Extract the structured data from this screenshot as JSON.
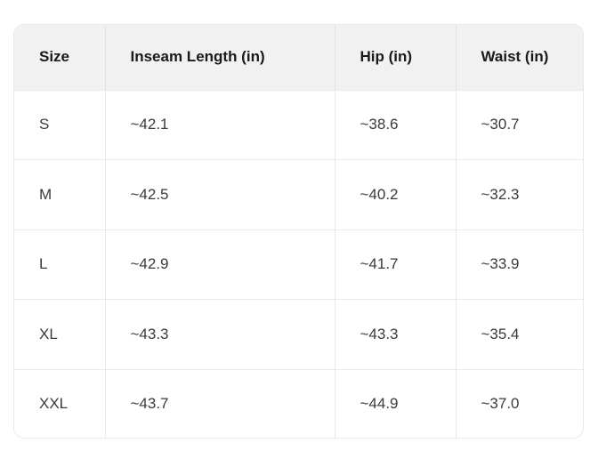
{
  "size_chart": {
    "columns": [
      {
        "label": "Size"
      },
      {
        "label": "Inseam Length (in)"
      },
      {
        "label": "Hip (in)"
      },
      {
        "label": "Waist (in)"
      }
    ],
    "rows": [
      {
        "size": "S",
        "inseam": "~42.1",
        "hip": "~38.6",
        "waist": "~30.7"
      },
      {
        "size": "M",
        "inseam": "~42.5",
        "hip": "~40.2",
        "waist": "~32.3"
      },
      {
        "size": "L",
        "inseam": "~42.9",
        "hip": "~41.7",
        "waist": "~33.9"
      },
      {
        "size": "XL",
        "inseam": "~43.3",
        "hip": "~43.3",
        "waist": "~35.4"
      },
      {
        "size": "XXL",
        "inseam": "~43.7",
        "hip": "~44.9",
        "waist": "~37.0"
      }
    ]
  },
  "chart_data": {
    "type": "table",
    "title": "",
    "columns": [
      "Size",
      "Inseam Length (in)",
      "Hip (in)",
      "Waist (in)"
    ],
    "rows": [
      [
        "S",
        "~42.1",
        "~38.6",
        "~30.7"
      ],
      [
        "M",
        "~42.5",
        "~40.2",
        "~32.3"
      ],
      [
        "L",
        "~42.9",
        "~41.7",
        "~33.9"
      ],
      [
        "XL",
        "~43.3",
        "~43.3",
        "~35.4"
      ],
      [
        "XXL",
        "~43.7",
        "~44.9",
        "~37.0"
      ]
    ],
    "numeric_values": {
      "inseam_length_in": [
        42.1,
        42.5,
        42.9,
        43.3,
        43.7
      ],
      "hip_in": [
        38.6,
        40.2,
        41.7,
        43.3,
        44.9
      ],
      "waist_in": [
        30.7,
        32.3,
        33.9,
        35.4,
        37.0
      ]
    },
    "layout_hints": {
      "header_position": "top",
      "cell_alignment": "left",
      "rounded_corners": true
    }
  },
  "colors": {
    "page_background": "#ffffff",
    "header_background": "#f1f1f1",
    "row_background": "#ffffff",
    "border": "#e9e9e9",
    "outer_border": "#e8e8e8",
    "header_text": "#1a1a1a",
    "body_text": "#3a3a3a"
  }
}
